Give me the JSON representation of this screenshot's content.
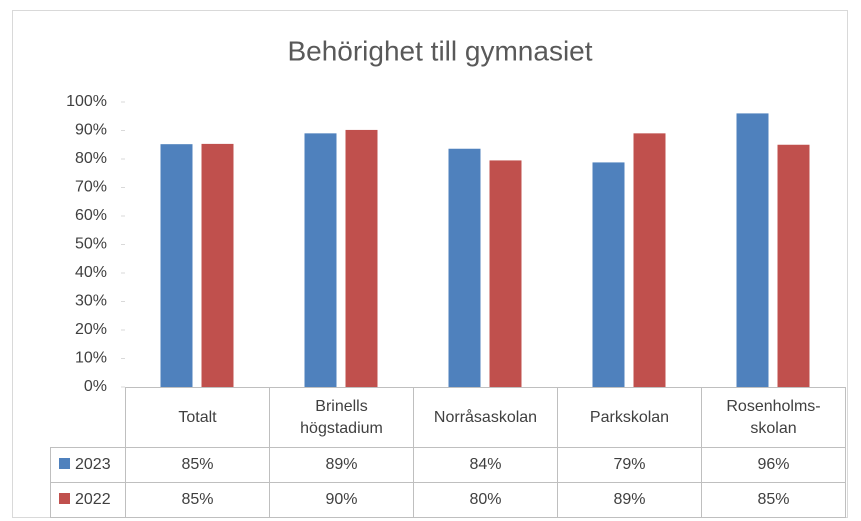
{
  "chart_data": {
    "type": "bar",
    "title": "Behörighet till gymnasiet",
    "categories": [
      "Totalt",
      "Brinells\nhögstadium",
      "Norråsaskolan",
      "Parkskolan",
      "Rosenholms-\nskolan"
    ],
    "series": [
      {
        "name": "2023",
        "color": "#4f81bd",
        "values": [
          85.2,
          89,
          83.6,
          78.8,
          96
        ],
        "value_labels": [
          "85%",
          "89%",
          "84%",
          "79%",
          "96%"
        ]
      },
      {
        "name": "2022",
        "color": "#c0504d",
        "values": [
          85.3,
          90.2,
          79.5,
          89,
          85
        ],
        "value_labels": [
          "85%",
          "90%",
          "80%",
          "89%",
          "85%"
        ]
      }
    ],
    "ylim": [
      0,
      100
    ],
    "yticks": [
      {
        "value": 0,
        "label": "0%"
      },
      {
        "value": 10,
        "label": "10%"
      },
      {
        "value": 20,
        "label": "20%"
      },
      {
        "value": 30,
        "label": "30%"
      },
      {
        "value": 40,
        "label": "40%"
      },
      {
        "value": 50,
        "label": "50%"
      },
      {
        "value": 60,
        "label": "60%"
      },
      {
        "value": 70,
        "label": "70%"
      },
      {
        "value": 80,
        "label": "80%"
      },
      {
        "value": 90,
        "label": "90%"
      },
      {
        "value": 100,
        "label": "100%"
      }
    ],
    "grid": false
  }
}
